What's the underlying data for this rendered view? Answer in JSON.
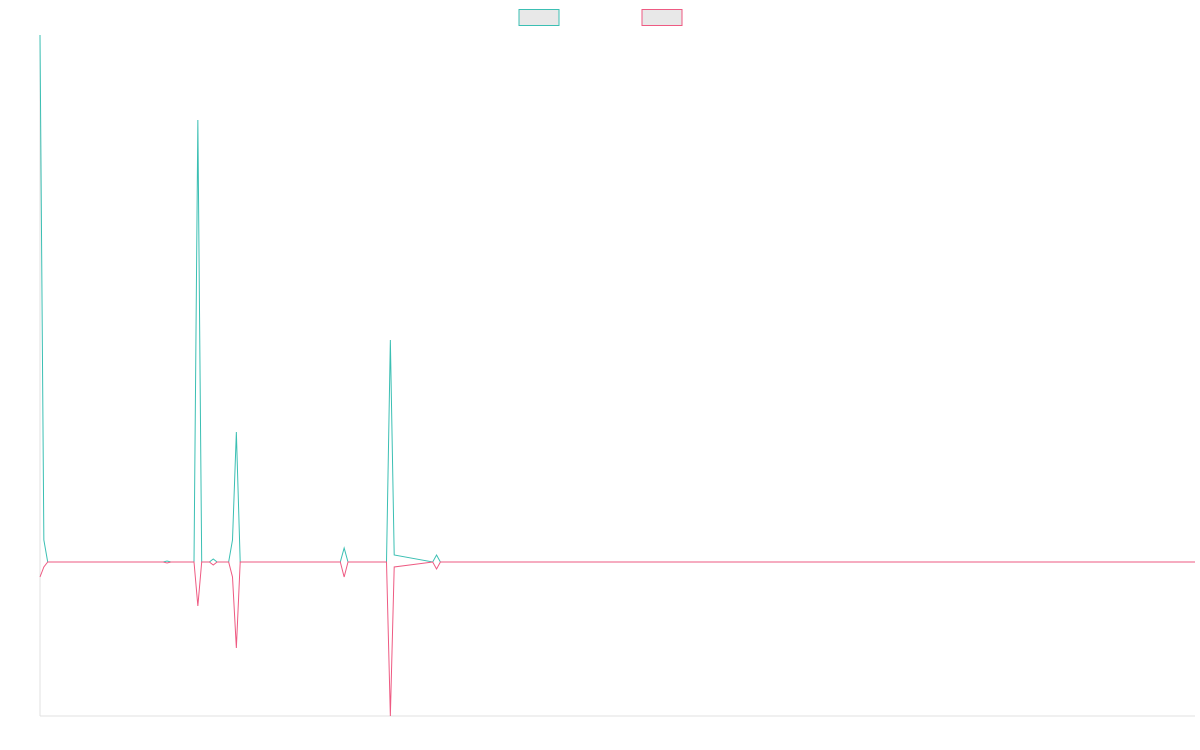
{
  "chart_data": {
    "type": "line",
    "x": [
      0,
      1,
      2,
      32,
      33,
      34,
      40,
      41,
      42,
      44,
      45,
      46,
      49,
      50,
      51,
      52,
      53,
      78,
      79,
      80,
      90,
      91,
      92,
      102,
      103,
      104,
      300
    ],
    "series": [
      {
        "color": "#3bbfb3",
        "values": [
          527,
          22,
          0,
          0,
          1,
          0,
          0,
          442,
          0,
          0,
          3,
          0,
          0,
          22,
          130,
          0,
          0,
          0,
          14,
          0,
          0,
          222,
          7,
          0,
          7,
          0,
          0
        ]
      },
      {
        "color": "#ee5a82",
        "values": [
          -15,
          -5,
          0,
          0,
          -1,
          0,
          0,
          -44,
          0,
          0,
          -3,
          0,
          0,
          -15,
          -86,
          0,
          0,
          0,
          -15,
          0,
          0,
          -154,
          -5,
          0,
          -7,
          0,
          0
        ]
      }
    ],
    "xlim": [
      0,
      300
    ],
    "ylim": [
      -154,
      527
    ]
  }
}
